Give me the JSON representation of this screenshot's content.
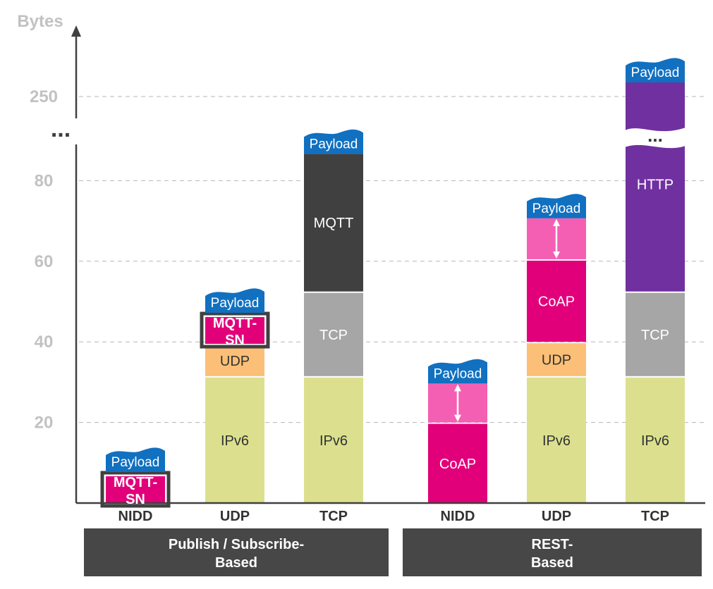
{
  "chart_data": {
    "type": "bar",
    "stacked": true,
    "ylabel": "Bytes",
    "y_ticks": [
      "20",
      "40",
      "60",
      "80",
      "250"
    ],
    "axis_break": "...",
    "grid": true,
    "categories": [
      "NIDD",
      "UDP",
      "TCP",
      "NIDD",
      "UDP",
      "TCP"
    ],
    "groups": [
      {
        "label_line1": "Publish / Subscribe-",
        "label_line2": "Based",
        "categories": [
          "NIDD",
          "UDP",
          "TCP"
        ]
      },
      {
        "label_line1": "REST-",
        "label_line2": "Based",
        "categories": [
          "NIDD",
          "UDP",
          "TCP"
        ]
      }
    ],
    "payload_label": "Payload",
    "colors": {
      "payload": "#1170c0",
      "ipv6": "#dce08e",
      "udp": "#fbbf77",
      "tcp": "#a6a6a6",
      "mqtt": "#404040",
      "mqtt_sn": "#e2007a",
      "coap": "#e2007a",
      "coap_options": "#f45fb3",
      "http": "#7030a0",
      "group_bg": "#474747"
    },
    "bars": [
      {
        "category": "NIDD",
        "group": "Publish / Subscribe-Based",
        "segments": [
          {
            "label_line1": "MQTT-",
            "label_line2": "SN",
            "start": 0,
            "end": 7,
            "color": "#e2007a",
            "bold": true,
            "outlined": true
          }
        ]
      },
      {
        "category": "UDP",
        "group": "Publish / Subscribe-Based",
        "segments": [
          {
            "label": "IPv6",
            "start": 0,
            "end": 31.5,
            "color": "#dce08e",
            "dark": true
          },
          {
            "label": "UDP",
            "start": 31.5,
            "end": 39.5,
            "color": "#fbbf77",
            "dark": true
          },
          {
            "label_line1": "MQTT-",
            "label_line2": "SN",
            "start": 39.5,
            "end": 46.5,
            "color": "#e2007a",
            "bold": true,
            "outlined": true
          }
        ]
      },
      {
        "category": "TCP",
        "group": "Publish / Subscribe-Based",
        "segments": [
          {
            "label": "IPv6",
            "start": 0,
            "end": 31.5,
            "color": "#dce08e",
            "dark": true
          },
          {
            "label": "TCP",
            "start": 31.5,
            "end": 52.5,
            "color": "#a6a6a6"
          },
          {
            "label": "MQTT",
            "start": 52.5,
            "end": 87,
            "color": "#404040"
          }
        ]
      },
      {
        "category": "NIDD",
        "group": "REST-Based",
        "segments": [
          {
            "label": "CoAP",
            "start": 0,
            "end": 20,
            "color": "#e2007a"
          },
          {
            "label": "",
            "start": 20,
            "end": 30,
            "color": "#f45fb3",
            "arrow": true
          }
        ]
      },
      {
        "category": "UDP",
        "group": "REST-Based",
        "segments": [
          {
            "label": "IPv6",
            "start": 0,
            "end": 31.5,
            "color": "#dce08e",
            "dark": true
          },
          {
            "label": "UDP",
            "start": 31.5,
            "end": 40,
            "color": "#fbbf77",
            "dark": true
          },
          {
            "label": "CoAP",
            "start": 40,
            "end": 60.5,
            "color": "#e2007a"
          },
          {
            "label": "",
            "start": 60.5,
            "end": 71,
            "color": "#f45fb3",
            "arrow": true
          }
        ]
      },
      {
        "category": "TCP",
        "group": "REST-Based",
        "segments": [
          {
            "label": "IPv6",
            "start": 0,
            "end": 31.5,
            "color": "#dce08e",
            "dark": true
          },
          {
            "label": "TCP",
            "start": 31.5,
            "end": 52.5,
            "color": "#a6a6a6"
          },
          {
            "label": "HTTP",
            "start": 52.5,
            "end": 260,
            "color": "#7030a0",
            "broken": true
          }
        ]
      }
    ]
  }
}
